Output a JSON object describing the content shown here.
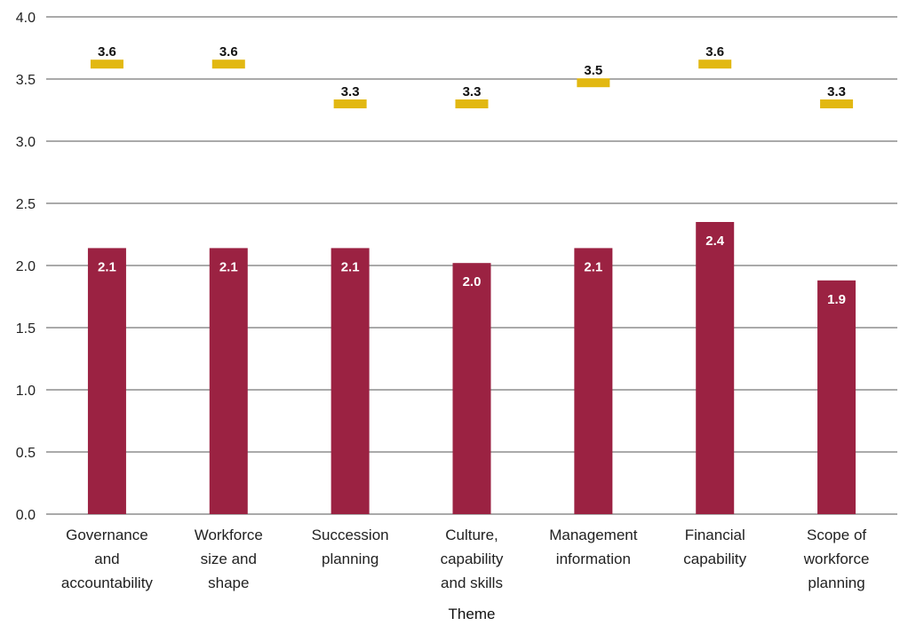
{
  "chart_data": {
    "type": "bar",
    "categories": [
      [
        "Governance",
        "and",
        "accountability"
      ],
      [
        "Workforce",
        "size and",
        "shape"
      ],
      [
        "Succession",
        "planning"
      ],
      [
        "Culture,",
        "capability",
        "and skills"
      ],
      [
        "Management",
        "information"
      ],
      [
        "Financial",
        "capability"
      ],
      [
        "Scope of",
        "workforce",
        "planning"
      ]
    ],
    "series": [
      {
        "values": [
          2.1,
          2.1,
          2.1,
          2.0,
          2.1,
          2.4,
          1.9
        ],
        "plot_values": [
          2.14,
          2.14,
          2.14,
          2.02,
          2.14,
          2.35,
          1.88
        ],
        "color": "#9b2242",
        "style": "bar"
      },
      {
        "values": [
          3.6,
          3.6,
          3.3,
          3.3,
          3.5,
          3.6,
          3.3
        ],
        "plot_values": [
          3.62,
          3.62,
          3.3,
          3.3,
          3.47,
          3.62,
          3.3
        ],
        "color": "#e2b812",
        "style": "marker"
      }
    ],
    "xlabel": "Theme",
    "ylabel": "",
    "ylim": [
      0,
      4
    ],
    "yticks": [
      "0.0",
      "0.5",
      "1.0",
      "1.5",
      "2.0",
      "2.5",
      "3.0",
      "3.5",
      "4.0"
    ],
    "grid": true,
    "gridline_color": "#555555"
  }
}
